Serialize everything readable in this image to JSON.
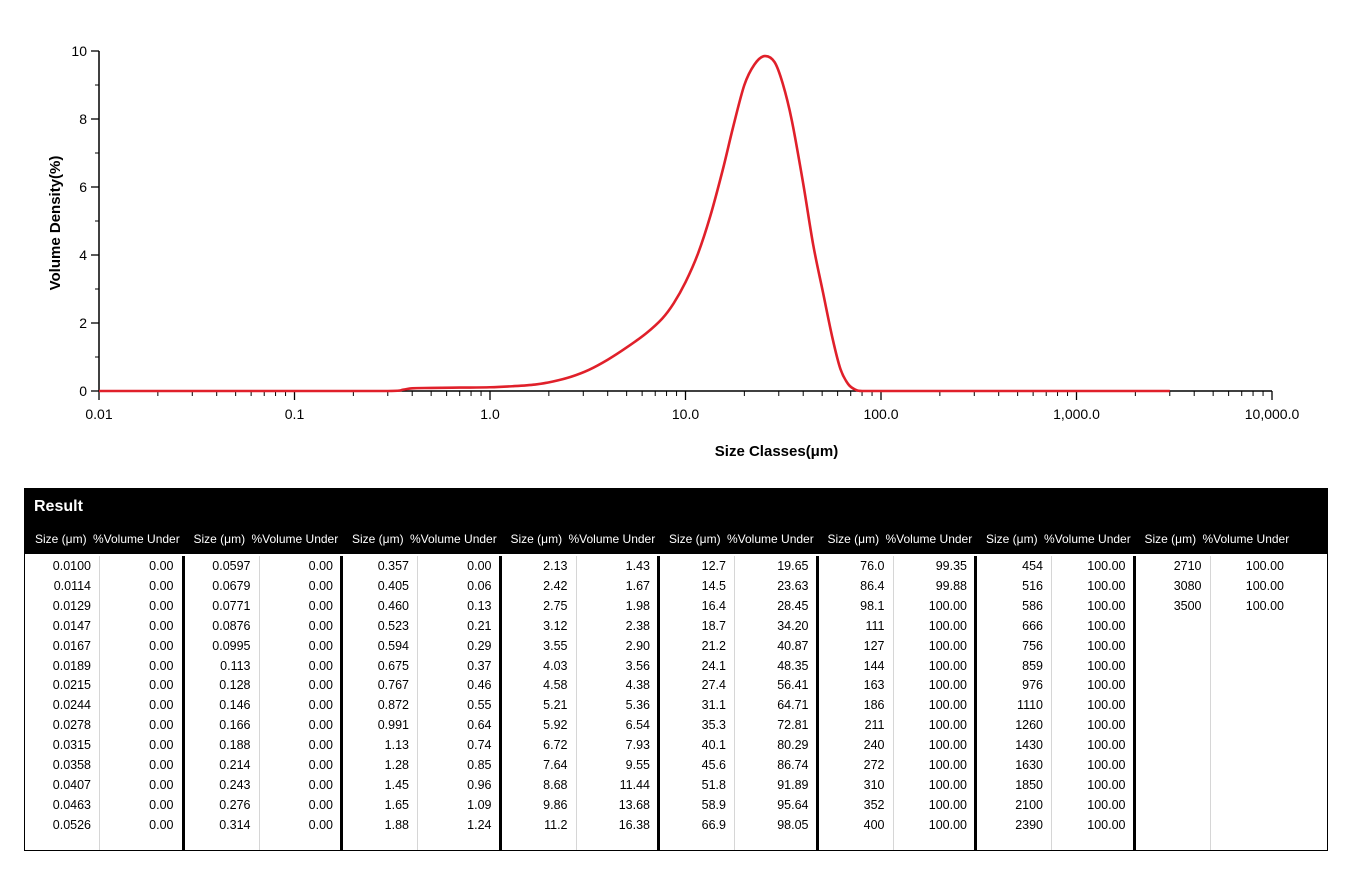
{
  "chart_data": {
    "type": "line",
    "xscale": "log",
    "xlim": [
      0.01,
      10000
    ],
    "ylim": [
      0,
      10
    ],
    "xlabel": "Size Classes(μm)",
    "ylabel": "Volume Density(%)",
    "x_tick_labels": [
      "0.01",
      "0.1",
      "1.0",
      "10.0",
      "100.0",
      "1,000.0",
      "10,000.0"
    ],
    "y_tick_labels": [
      "0",
      "2",
      "4",
      "6",
      "8",
      "10"
    ],
    "series": [
      {
        "color": "#e0202a",
        "points": [
          [
            0.01,
            0.0
          ],
          [
            0.1,
            0.0
          ],
          [
            0.3,
            0.0
          ],
          [
            0.36,
            0.04
          ],
          [
            0.4,
            0.08
          ],
          [
            0.5,
            0.09
          ],
          [
            0.7,
            0.1
          ],
          [
            1.0,
            0.11
          ],
          [
            1.3,
            0.14
          ],
          [
            1.7,
            0.19
          ],
          [
            2.1,
            0.28
          ],
          [
            2.6,
            0.42
          ],
          [
            3.2,
            0.62
          ],
          [
            4.0,
            0.92
          ],
          [
            5.0,
            1.28
          ],
          [
            6.3,
            1.7
          ],
          [
            7.6,
            2.13
          ],
          [
            8.7,
            2.58
          ],
          [
            10.0,
            3.2
          ],
          [
            11.6,
            4.05
          ],
          [
            13.4,
            5.15
          ],
          [
            15.5,
            6.5
          ],
          [
            17.5,
            7.75
          ],
          [
            20.0,
            9.0
          ],
          [
            22.5,
            9.6
          ],
          [
            25.3,
            9.85
          ],
          [
            28.5,
            9.68
          ],
          [
            31.4,
            9.05
          ],
          [
            35.0,
            7.95
          ],
          [
            40.0,
            6.1
          ],
          [
            45.0,
            4.3
          ],
          [
            50.5,
            2.9
          ],
          [
            56.5,
            1.55
          ],
          [
            62.0,
            0.65
          ],
          [
            68.0,
            0.2
          ],
          [
            74.0,
            0.04
          ],
          [
            80.0,
            0.0
          ],
          [
            100.0,
            0.0
          ],
          [
            1000.0,
            0.0
          ],
          [
            3000.0,
            0.0
          ]
        ]
      }
    ]
  },
  "table": {
    "title": "Result",
    "size_header": "Size (μm)",
    "volume_header": "%Volume Under",
    "columns": [
      {
        "sizes": [
          "0.0100",
          "0.0114",
          "0.0129",
          "0.0147",
          "0.0167",
          "0.0189",
          "0.0215",
          "0.0244",
          "0.0278",
          "0.0315",
          "0.0358",
          "0.0407",
          "0.0463",
          "0.0526"
        ],
        "volumes": [
          "0.00",
          "0.00",
          "0.00",
          "0.00",
          "0.00",
          "0.00",
          "0.00",
          "0.00",
          "0.00",
          "0.00",
          "0.00",
          "0.00",
          "0.00",
          "0.00"
        ]
      },
      {
        "sizes": [
          "0.0597",
          "0.0679",
          "0.0771",
          "0.0876",
          "0.0995",
          "0.113",
          "0.128",
          "0.146",
          "0.166",
          "0.188",
          "0.214",
          "0.243",
          "0.276",
          "0.314"
        ],
        "volumes": [
          "0.00",
          "0.00",
          "0.00",
          "0.00",
          "0.00",
          "0.00",
          "0.00",
          "0.00",
          "0.00",
          "0.00",
          "0.00",
          "0.00",
          "0.00",
          "0.00"
        ]
      },
      {
        "sizes": [
          "0.357",
          "0.405",
          "0.460",
          "0.523",
          "0.594",
          "0.675",
          "0.767",
          "0.872",
          "0.991",
          "1.13",
          "1.28",
          "1.45",
          "1.65",
          "1.88"
        ],
        "volumes": [
          "0.00",
          "0.06",
          "0.13",
          "0.21",
          "0.29",
          "0.37",
          "0.46",
          "0.55",
          "0.64",
          "0.74",
          "0.85",
          "0.96",
          "1.09",
          "1.24"
        ]
      },
      {
        "sizes": [
          "2.13",
          "2.42",
          "2.75",
          "3.12",
          "3.55",
          "4.03",
          "4.58",
          "5.21",
          "5.92",
          "6.72",
          "7.64",
          "8.68",
          "9.86",
          "11.2"
        ],
        "volumes": [
          "1.43",
          "1.67",
          "1.98",
          "2.38",
          "2.90",
          "3.56",
          "4.38",
          "5.36",
          "6.54",
          "7.93",
          "9.55",
          "11.44",
          "13.68",
          "16.38"
        ]
      },
      {
        "sizes": [
          "12.7",
          "14.5",
          "16.4",
          "18.7",
          "21.2",
          "24.1",
          "27.4",
          "31.1",
          "35.3",
          "40.1",
          "45.6",
          "51.8",
          "58.9",
          "66.9"
        ],
        "volumes": [
          "19.65",
          "23.63",
          "28.45",
          "34.20",
          "40.87",
          "48.35",
          "56.41",
          "64.71",
          "72.81",
          "80.29",
          "86.74",
          "91.89",
          "95.64",
          "98.05"
        ]
      },
      {
        "sizes": [
          "76.0",
          "86.4",
          "98.1",
          "111",
          "127",
          "144",
          "163",
          "186",
          "211",
          "240",
          "272",
          "310",
          "352",
          "400"
        ],
        "volumes": [
          "99.35",
          "99.88",
          "100.00",
          "100.00",
          "100.00",
          "100.00",
          "100.00",
          "100.00",
          "100.00",
          "100.00",
          "100.00",
          "100.00",
          "100.00",
          "100.00"
        ]
      },
      {
        "sizes": [
          "454",
          "516",
          "586",
          "666",
          "756",
          "859",
          "976",
          "1110",
          "1260",
          "1430",
          "1630",
          "1850",
          "2100",
          "2390"
        ],
        "volumes": [
          "100.00",
          "100.00",
          "100.00",
          "100.00",
          "100.00",
          "100.00",
          "100.00",
          "100.00",
          "100.00",
          "100.00",
          "100.00",
          "100.00",
          "100.00",
          "100.00"
        ]
      },
      {
        "sizes": [
          "2710",
          "3080",
          "3500"
        ],
        "volumes": [
          "100.00",
          "100.00",
          "100.00"
        ]
      }
    ]
  }
}
